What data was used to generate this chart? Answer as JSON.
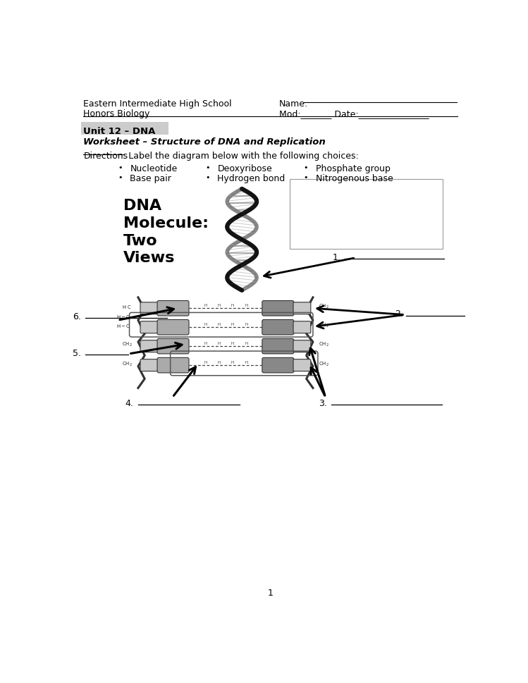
{
  "school_line1": "Eastern Intermediate High School",
  "school_line2": "Honors Biology",
  "name_label": "Name:",
  "mod_label": "Mod:_______ Date:________________",
  "unit_title": "Unit 12 – DNA",
  "worksheet_title": "Worksheet – Structure of DNA and Replication",
  "directions_underline": "Directions",
  "directions_rest": ": Label the diagram below with the following choices:",
  "bullet_col1": [
    "Nucleotide",
    "Base pair"
  ],
  "bullet_col2": [
    "Deoxyribose",
    "Hydrogen bond"
  ],
  "bullet_col3": [
    "Phosphate group",
    "Nitrogenous base"
  ],
  "dna_title": "DNA\nMolecule:\nTwo\nViews",
  "label1": "1.",
  "label2": "2.",
  "label3": "3.",
  "label4": "4.",
  "label5": "5.",
  "label6": "6.",
  "page_number": "1",
  "bg_color": "#ffffff",
  "text_color": "#000000",
  "line_color": "#000000"
}
